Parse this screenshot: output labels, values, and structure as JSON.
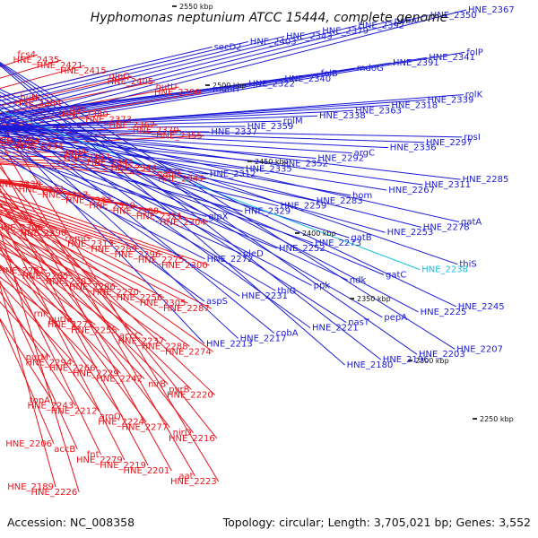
{
  "title": "Hyphomonas neptunium ATCC 15444, complete genome",
  "footer": {
    "accession": "Accession: NC_008358",
    "summary": "Topology: circular; Length: 3,705,021 bp; Genes: 3,552"
  },
  "ruler_labels": [
    "2550 kbp",
    "2500 kbp",
    "2450 kbp",
    "2400 kbp",
    "2350 kbp",
    "2300 kbp",
    "2250 kbp"
  ],
  "colors": {
    "forward": "#e8131b",
    "reverse": "#1b1bd6",
    "highlight": "#19c0e0",
    "backbone": "#7d7d7d"
  },
  "labels_left": [
    "fcs4",
    "HNE_2435",
    "HNE_2421",
    "HNE_2415",
    "glpQ",
    "HNE_2405",
    "hutU",
    "HNE_2390",
    "hutI",
    "HNE_2384",
    "ohr",
    "HNE_2380",
    "HNE_2373",
    "HNE_2362",
    "HNE_2370",
    "HNE_2355",
    "HNE_2353",
    "HNE_2334",
    "pruA",
    "HNE_2357",
    "HNE_2342",
    "HNE_2344",
    "gabD",
    "HNE_2347",
    "HNE_2330",
    "HNE_2331",
    "HNE_2317",
    "HNE_2332",
    "HNE_2319",
    "HNE_2308",
    "HNE_2321",
    "HNE_2304",
    "HNE_2306",
    "HNE_2290",
    "rpmG",
    "HNE_2313",
    "HNE_2289",
    "HNE_2296",
    "HNE_2275",
    "HNE_2300",
    "HNE_2281",
    "HNE_2265",
    "HNE_2303",
    "HNE_2286",
    "HNE_2270",
    "HNE_2256",
    "HNE_2305",
    "HNE_2287",
    "rnr",
    "purN",
    "HNE_2271",
    "HNE_2255",
    "accC",
    "HNE_2237",
    "HNE_2288",
    "HNE_2274",
    "purM",
    "HNE_2294",
    "HNE_2266",
    "HNE_2229",
    "HNE_2242",
    "nirB",
    "pyrB",
    "HNE_2220",
    "topA",
    "HNE_2243",
    "HNE_2212",
    "aroQ",
    "HNE_2224",
    "HNE_2277",
    "nirD",
    "HNE_2216",
    "HNE_2206",
    "accB",
    "fnt",
    "HNE_2279",
    "HNE_2219",
    "HNE_2201",
    "aat",
    "HNE_2223",
    "HNE_2189",
    "HNE_2226"
  ],
  "labels_right": [
    "HNE_2367",
    "HNE_2350",
    "pabA",
    "HNE_2392",
    "HNE_2379",
    "HNE_2343",
    "HNE_2403",
    "secD2",
    "folP",
    "HNE_2341",
    "HNE_2391",
    "mdoG",
    "folB",
    "HNE_2340",
    "HNE_2322",
    "mdoH",
    "rolK",
    "HNE_2339",
    "HNE_2318",
    "HNE_2363",
    "HNE_2338",
    "rplM",
    "HNE_2359",
    "HNE_2337",
    "rpsI",
    "HNE_2297",
    "HNE_2336",
    "argC",
    "HNE_2292",
    "HNE_2352",
    "HNE_2335",
    "HNE_2312",
    "HNE_2285",
    "HNE_2311",
    "HNE_2267",
    "hom",
    "HNE_2283",
    "HNE_2259",
    "HNE_2329",
    "glpX",
    "gatA",
    "HNE_2278",
    "HNE_2253",
    "gatB",
    "HNE_2273",
    "HNE_2252",
    "pleD",
    "HNE_2272",
    "thiS",
    "HNE_2238",
    "gatC",
    "ndk",
    "ppk",
    "thiG",
    "HNE_2231",
    "aspS",
    "HNE_2245",
    "HNE_2225",
    "pepA",
    "nasT",
    "HNE_2221",
    "cobA",
    "HNE_2217",
    "HNE_2213",
    "HNE_2207",
    "HNE_2203",
    "HNE_2196",
    "HNE_2180"
  ]
}
